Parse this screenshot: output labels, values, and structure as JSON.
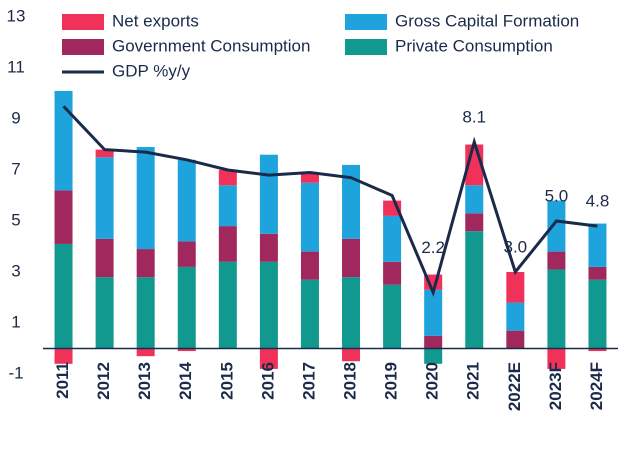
{
  "chart_data": {
    "type": "bar",
    "categories": [
      "2011",
      "2012",
      "2013",
      "2014",
      "2015",
      "2016",
      "2017",
      "2018",
      "2019",
      "2020",
      "2021",
      "2022E",
      "2023F",
      "2024F"
    ],
    "series": [
      {
        "name": "Private Consumption",
        "color": "#11998f",
        "values": [
          4.1,
          2.8,
          2.8,
          3.2,
          3.4,
          3.4,
          2.7,
          2.8,
          2.5,
          -0.6,
          4.6,
          0,
          3.1,
          2.7
        ]
      },
      {
        "name": "Government Consumption",
        "color": "#a0285c",
        "values": [
          2.1,
          1.5,
          1.1,
          1.0,
          1.4,
          1.1,
          1.1,
          1.5,
          0.9,
          0.5,
          0.7,
          0.7,
          0.7,
          0.5
        ]
      },
      {
        "name": "Gross Capital Formation",
        "color": "#1ea3dc",
        "values": [
          3.9,
          3.2,
          4.0,
          3.2,
          1.6,
          3.1,
          2.7,
          2.9,
          1.8,
          1.8,
          1.1,
          1.1,
          2.0,
          1.7
        ]
      },
      {
        "name": "Net exports",
        "color": "#f0325a",
        "values": [
          -0.6,
          0.3,
          -0.3,
          -0.1,
          0.6,
          -0.8,
          0.4,
          -0.5,
          0.6,
          0.6,
          1.6,
          1.2,
          -0.8,
          -0.1
        ]
      },
      {
        "name": "GDP %y/y",
        "type": "line",
        "color": "#1a2a4a",
        "values": [
          9.5,
          7.8,
          7.7,
          7.4,
          7.0,
          6.8,
          6.9,
          6.7,
          6.0,
          2.2,
          8.1,
          3.0,
          5.0,
          4.8
        ],
        "value_labels": [
          null,
          null,
          null,
          null,
          null,
          null,
          null,
          null,
          null,
          "2.2",
          "8.1",
          "3.0",
          "5.0",
          "4.8"
        ]
      }
    ],
    "ylim": [
      -1.5,
      13.5
    ],
    "yticks": [
      -1,
      1,
      3,
      5,
      7,
      9,
      11,
      13
    ]
  }
}
